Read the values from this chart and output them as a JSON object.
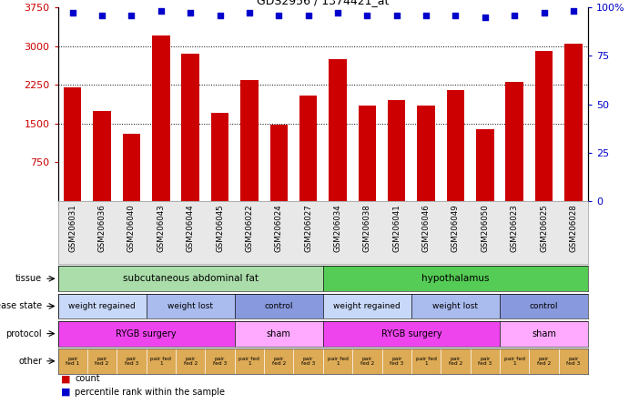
{
  "title": "GDS2956 / 1374421_at",
  "samples": [
    "GSM206031",
    "GSM206036",
    "GSM206040",
    "GSM206043",
    "GSM206044",
    "GSM206045",
    "GSM206022",
    "GSM206024",
    "GSM206027",
    "GSM206034",
    "GSM206038",
    "GSM206041",
    "GSM206046",
    "GSM206049",
    "GSM206050",
    "GSM206023",
    "GSM206025",
    "GSM206028"
  ],
  "counts": [
    2200,
    1750,
    1300,
    3200,
    2850,
    1700,
    2350,
    1480,
    2050,
    2750,
    1850,
    1950,
    1850,
    2150,
    1400,
    2300,
    2900,
    3050
  ],
  "pct_y": [
    97,
    96,
    96,
    98,
    97,
    96,
    97,
    96,
    96,
    97,
    96,
    96,
    96,
    96,
    95,
    96,
    97,
    98
  ],
  "bar_color": "#cc0000",
  "dot_color": "#0000cc",
  "y_left_ticks": [
    750,
    1500,
    2250,
    3000,
    3750
  ],
  "y_right_ticks": [
    0,
    25,
    50,
    75,
    100
  ],
  "ylim_left": [
    0,
    3750
  ],
  "ylim_right": [
    0,
    100
  ],
  "grid_lines": [
    1500,
    2250,
    3000
  ],
  "tissue_row": [
    {
      "start": 0,
      "end": 9,
      "label": "subcutaneous abdominal fat",
      "color": "#aaddaa"
    },
    {
      "start": 9,
      "end": 18,
      "label": "hypothalamus",
      "color": "#55cc55"
    }
  ],
  "disease_row": [
    {
      "start": 0,
      "end": 3,
      "label": "weight regained",
      "color": "#c8d8f8"
    },
    {
      "start": 3,
      "end": 6,
      "label": "weight lost",
      "color": "#aabbee"
    },
    {
      "start": 6,
      "end": 9,
      "label": "control",
      "color": "#8899dd"
    },
    {
      "start": 9,
      "end": 12,
      "label": "weight regained",
      "color": "#c8d8f8"
    },
    {
      "start": 12,
      "end": 15,
      "label": "weight lost",
      "color": "#aabbee"
    },
    {
      "start": 15,
      "end": 18,
      "label": "control",
      "color": "#8899dd"
    }
  ],
  "protocol_row": [
    {
      "start": 0,
      "end": 6,
      "label": "RYGB surgery",
      "color": "#ee44ee"
    },
    {
      "start": 6,
      "end": 9,
      "label": "sham",
      "color": "#ffaaff"
    },
    {
      "start": 9,
      "end": 15,
      "label": "RYGB surgery",
      "color": "#ee44ee"
    },
    {
      "start": 15,
      "end": 18,
      "label": "sham",
      "color": "#ffaaff"
    }
  ],
  "other_color": "#ddaa55",
  "other_labels": [
    "pair\nfed 1",
    "pair\nfed 2",
    "pair\nfed 3",
    "pair fed\n1",
    "pair\nfed 2",
    "pair\nfed 3",
    "pair fed\n1",
    "pair\nfed 2",
    "pair\nfed 3",
    "pair fed\n1",
    "pair\nfed 2",
    "pair\nfed 3",
    "pair fed\n1",
    "pair\nfed 2",
    "pair\nfed 3",
    "pair fed\n1",
    "pair\nfed 2",
    "pair\nfed 3"
  ],
  "row_labels": [
    "tissue",
    "disease state",
    "protocol",
    "other"
  ],
  "background_color": "#ffffff",
  "xticklabel_bg": "#e8e8e8"
}
